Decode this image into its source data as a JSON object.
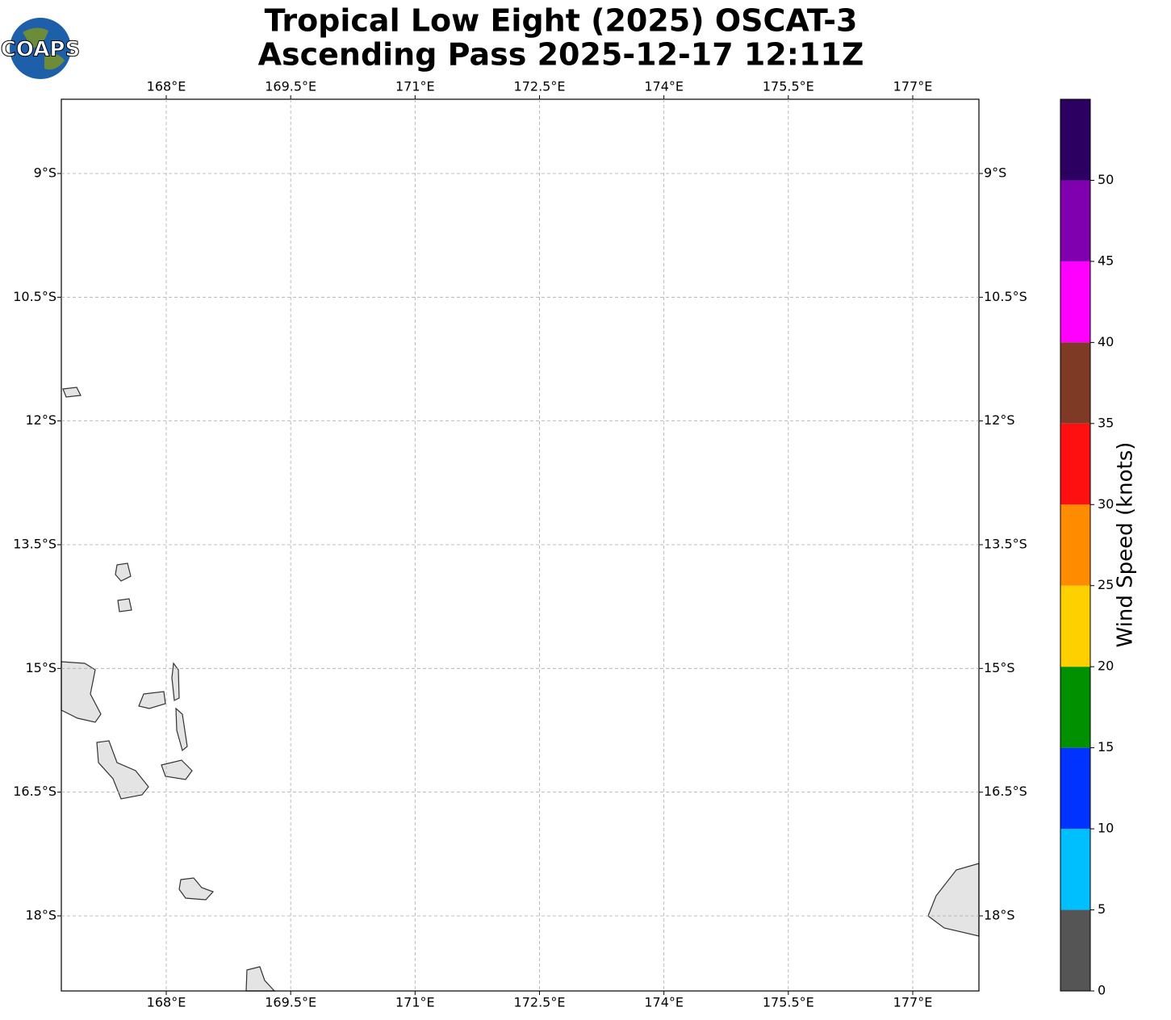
{
  "logo": "COAPS",
  "chart_data": {
    "type": "map",
    "title": [
      "Tropical Low Eight (2025) OSCAT-3",
      "Ascending Pass 2025-12-17 12:11Z"
    ],
    "xlim": [
      166.735,
      177.798
    ],
    "ylim": [
      -18.91,
      -8.1
    ],
    "xticks": [
      {
        "value": 168,
        "label": "168°E"
      },
      {
        "value": 169.5,
        "label": "169.5°E"
      },
      {
        "value": 171,
        "label": "171°E"
      },
      {
        "value": 172.5,
        "label": "172.5°E"
      },
      {
        "value": 174,
        "label": "174°E"
      },
      {
        "value": 175.5,
        "label": "175.5°E"
      },
      {
        "value": 177,
        "label": "177°E"
      }
    ],
    "yticks": [
      {
        "value": -9,
        "label": "9°S"
      },
      {
        "value": -10.5,
        "label": "10.5°S"
      },
      {
        "value": -12,
        "label": "12°S"
      },
      {
        "value": -13.5,
        "label": "13.5°S"
      },
      {
        "value": -15,
        "label": "15°S"
      },
      {
        "value": -16.5,
        "label": "16.5°S"
      },
      {
        "value": -18,
        "label": "18°S"
      }
    ],
    "grid": true,
    "colorbar": {
      "label": "Wind Speed (knots)",
      "bounds": [
        0,
        5,
        10,
        15,
        20,
        25,
        30,
        35,
        40,
        45,
        50,
        55
      ],
      "colors": [
        "#555555",
        "#00bfff",
        "#0033ff",
        "#009000",
        "#ffd000",
        "#ff8c00",
        "#ff1010",
        "#7f3a26",
        "#ff00ff",
        "#8000b0",
        "#2b0060"
      ],
      "ticks": [
        0,
        5,
        10,
        15,
        20,
        25,
        30,
        35,
        40,
        45,
        50
      ]
    }
  }
}
